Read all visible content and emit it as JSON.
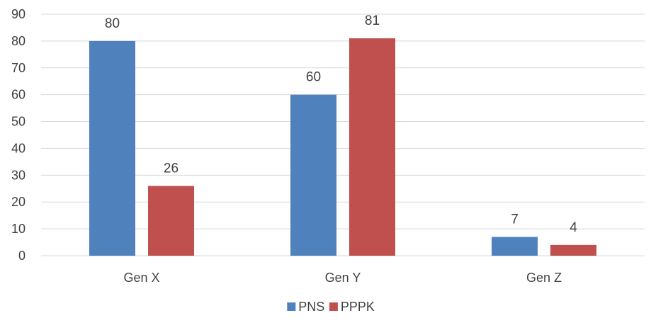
{
  "chart_data": {
    "type": "bar",
    "title": "",
    "xlabel": "",
    "ylabel": "",
    "categories": [
      "Gen X",
      "Gen Y",
      "Gen Z"
    ],
    "series": [
      {
        "name": "PNS",
        "values": [
          80,
          60,
          7
        ],
        "color": "#4f81bd"
      },
      {
        "name": "PPPK",
        "values": [
          26,
          81,
          4
        ],
        "color": "#c0504d"
      }
    ],
    "ylim": [
      0,
      90
    ],
    "ytick_step": 10,
    "yticks": [
      "0",
      "10",
      "20",
      "30",
      "40",
      "50",
      "60",
      "70",
      "80",
      "90"
    ],
    "grid": true,
    "data_labels": true,
    "legend_position": "bottom"
  }
}
